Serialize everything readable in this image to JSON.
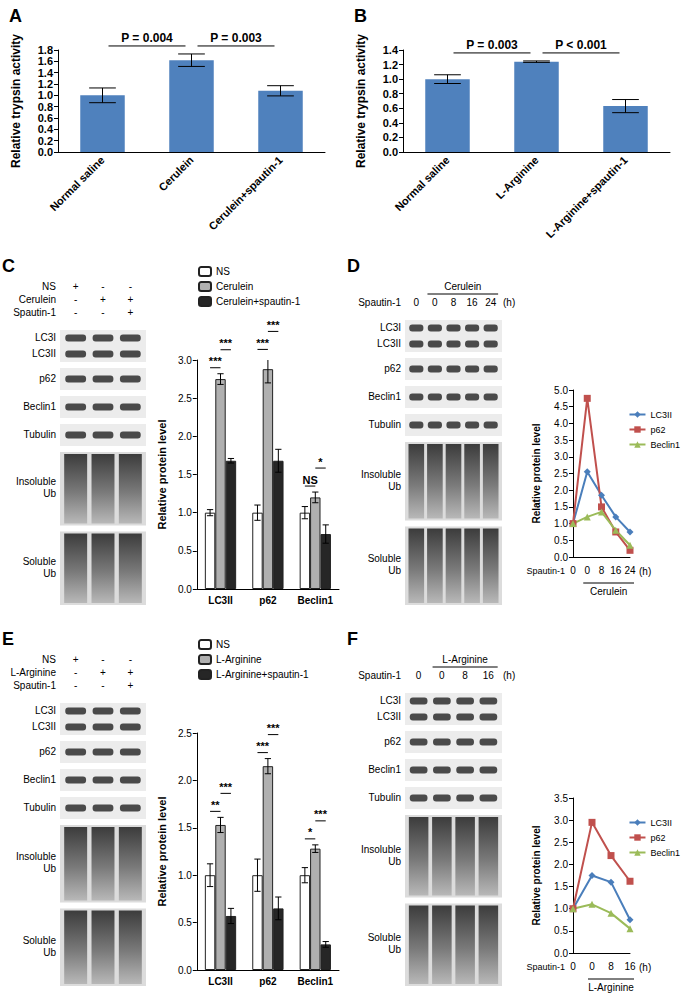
{
  "chart_data": [
    {
      "type": "bar",
      "title": "A",
      "categories": [
        "Normal saline",
        "Cerulein",
        "Cerulein+spautin-1"
      ],
      "values": [
        1.0,
        1.62,
        1.08
      ],
      "errors": [
        0.13,
        0.11,
        0.09
      ],
      "color": "#4f81bd",
      "ylabel": "Relative trypsin activity",
      "ylim": [
        0,
        1.8
      ],
      "yticks": [
        {
          "value": 0,
          "label": "0.0"
        },
        0.2,
        0.4,
        0.6,
        0.8,
        {
          "value": 1,
          "label": "1.0"
        },
        1.2,
        1.4,
        1.6,
        1.8
      ],
      "grid": false,
      "annotations": [
        {
          "between": [
            "Normal saline",
            "Cerulein"
          ],
          "text": "P = 0.004"
        },
        {
          "between": [
            "Cerulein",
            "Cerulein+spautin-1"
          ],
          "text": "P = 0.003"
        }
      ]
    },
    {
      "type": "bar",
      "title": "B",
      "categories": [
        "Normal saline",
        "L-Arginine",
        "L-Arginine+spautin-1"
      ],
      "values": [
        1.0,
        1.24,
        0.63
      ],
      "errors": [
        0.06,
        0.01,
        0.09
      ],
      "color": "#4f81bd",
      "ylabel": "Relative trypsin activity",
      "ylim": [
        0,
        1.4
      ],
      "yticks": [
        {
          "value": 0,
          "label": "0.0"
        },
        0.2,
        0.4,
        0.6,
        0.8,
        {
          "value": 1,
          "label": "1.0"
        },
        1.2,
        1.4
      ],
      "grid": false,
      "annotations": [
        {
          "between": [
            "Normal saline",
            "L-Arginine"
          ],
          "text": "P = 0.003"
        },
        {
          "between": [
            "L-Arginine",
            "L-Arginine+spautin-1"
          ],
          "text": "P < 0.001"
        }
      ]
    },
    {
      "type": "bar",
      "categories": [
        "LC3II",
        "p62",
        "Beclin1"
      ],
      "series": [
        {
          "name": "NS",
          "color": "#ffffff",
          "values": [
            1.0,
            1.0,
            1.0
          ],
          "errors": [
            0.04,
            0.1,
            0.08
          ]
        },
        {
          "name": "Cerulein",
          "color": "#b0b0b0",
          "values": [
            2.75,
            2.88,
            1.2
          ],
          "errors": [
            0.07,
            0.18,
            0.07
          ]
        },
        {
          "name": "Cerulein+spautin-1",
          "color": "#262626",
          "values": [
            1.68,
            1.68,
            0.72
          ],
          "errors": [
            0.03,
            0.15,
            0.12
          ]
        }
      ],
      "ylabel": "Relative protein level",
      "ylim": [
        0,
        3
      ],
      "yticks": [
        {
          "value": 0,
          "label": "0.0"
        },
        0.5,
        {
          "value": 1,
          "label": "1.0"
        },
        1.5,
        {
          "value": 2,
          "label": "2.0"
        },
        2.5,
        {
          "value": 3,
          "label": "3.0"
        }
      ],
      "grid": false,
      "legend": "top",
      "annotations": [
        {
          "category": "LC3II",
          "between": [
            "NS",
            "Cerulein"
          ],
          "text": "***"
        },
        {
          "category": "LC3II",
          "between": [
            "Cerulein",
            "Cerulein+spautin-1"
          ],
          "text": "***"
        },
        {
          "category": "p62",
          "between": [
            "NS",
            "Cerulein"
          ],
          "text": "***"
        },
        {
          "category": "p62",
          "between": [
            "Cerulein",
            "Cerulein+spautin-1"
          ],
          "text": "***"
        },
        {
          "category": "Beclin1",
          "between": [
            "NS",
            "Cerulein"
          ],
          "text": "NS"
        },
        {
          "category": "Beclin1",
          "between": [
            "Cerulein",
            "Cerulein+spautin-1"
          ],
          "text": "*"
        }
      ]
    },
    {
      "type": "line",
      "categories": [
        "0",
        "0",
        "8",
        "16",
        "24"
      ],
      "xlabel": "Spautin-1",
      "series": [
        {
          "name": "LC3II",
          "color": "#4a7ebb",
          "marker": "diamond",
          "values": [
            1.0,
            2.55,
            1.85,
            1.2,
            0.75
          ]
        },
        {
          "name": "p62",
          "color": "#c0504d",
          "marker": "square",
          "values": [
            1.0,
            4.75,
            1.5,
            0.75,
            0.2
          ]
        },
        {
          "name": "Beclin1",
          "color": "#9bbb59",
          "marker": "triangle",
          "values": [
            1.0,
            1.2,
            1.35,
            0.8,
            0.35
          ]
        }
      ],
      "ylabel": "Relative protein level",
      "ylim": [
        0,
        5
      ],
      "yticks": [
        {
          "value": 0,
          "label": "0.0"
        },
        0.5,
        {
          "value": 1,
          "label": "1.0"
        },
        1.5,
        {
          "value": 2,
          "label": "2.0"
        },
        2.5,
        {
          "value": 3,
          "label": "3.0"
        },
        3.5,
        {
          "value": 4,
          "label": "4.0"
        },
        4.5,
        {
          "value": 5,
          "label": "5.0"
        }
      ],
      "grid": false,
      "legend": "right",
      "annotations": [
        {
          "text": "(h)"
        },
        {
          "text": "Cerulein",
          "bracket": [
            1,
            4
          ]
        }
      ]
    },
    {
      "type": "bar",
      "categories": [
        "LC3II",
        "p62",
        "Beclin1"
      ],
      "series": [
        {
          "name": "NS",
          "color": "#ffffff",
          "values": [
            1.0,
            1.0,
            1.0
          ],
          "errors": [
            0.12,
            0.17,
            0.08
          ]
        },
        {
          "name": "L-Arginine",
          "color": "#b0b0b0",
          "values": [
            1.53,
            2.15,
            1.28
          ],
          "errors": [
            0.08,
            0.08,
            0.04
          ]
        },
        {
          "name": "L-Arginine+spautin-1",
          "color": "#262626",
          "values": [
            0.57,
            0.65,
            0.27
          ],
          "errors": [
            0.08,
            0.12,
            0.03
          ]
        }
      ],
      "ylabel": "Relative protein level",
      "ylim": [
        0,
        2.5
      ],
      "yticks": [
        {
          "value": 0,
          "label": "0.0"
        },
        0.5,
        {
          "value": 1,
          "label": "1.0"
        },
        1.5,
        {
          "value": 2,
          "label": "2.0"
        },
        2.5
      ],
      "grid": false,
      "legend": "top",
      "annotations": [
        {
          "category": "LC3II",
          "between": [
            "NS",
            "L-Arginine"
          ],
          "text": "**"
        },
        {
          "category": "LC3II",
          "between": [
            "L-Arginine",
            "L-Arginine+spautin-1"
          ],
          "text": "***"
        },
        {
          "category": "p62",
          "between": [
            "NS",
            "L-Arginine"
          ],
          "text": "***"
        },
        {
          "category": "p62",
          "between": [
            "L-Arginine",
            "L-Arginine+spautin-1"
          ],
          "text": "***"
        },
        {
          "category": "Beclin1",
          "between": [
            "NS",
            "L-Arginine"
          ],
          "text": "*"
        },
        {
          "category": "Beclin1",
          "between": [
            "L-Arginine",
            "L-Arginine+spautin-1"
          ],
          "text": "***"
        }
      ]
    },
    {
      "type": "line",
      "categories": [
        "0",
        "0",
        "8",
        "16"
      ],
      "xlabel": "Spautin-1",
      "series": [
        {
          "name": "LC3II",
          "color": "#4a7ebb",
          "marker": "diamond",
          "values": [
            1.0,
            1.75,
            1.6,
            0.75
          ]
        },
        {
          "name": "p62",
          "color": "#c0504d",
          "marker": "square",
          "values": [
            1.0,
            2.95,
            2.2,
            1.62
          ]
        },
        {
          "name": "Beclin1",
          "color": "#9bbb59",
          "marker": "triangle",
          "values": [
            1.0,
            1.1,
            0.9,
            0.55
          ]
        }
      ],
      "ylabel": "Relative protein level",
      "ylim": [
        0,
        3.5
      ],
      "yticks": [
        {
          "value": 0,
          "label": "0.0"
        },
        0.5,
        {
          "value": 1,
          "label": "1.0"
        },
        1.5,
        {
          "value": 2,
          "label": "2.0"
        },
        2.5,
        {
          "value": 3,
          "label": "3.0"
        },
        3.5
      ],
      "grid": false,
      "legend": "right",
      "annotations": [
        {
          "text": "(h)"
        },
        {
          "text": "L-Arginine",
          "bracket": [
            1,
            3
          ]
        }
      ]
    }
  ],
  "blots": [
    {
      "panel": "C",
      "conditions": [
        {
          "label": "NS",
          "marks": [
            "+",
            "-",
            "-"
          ]
        },
        {
          "label": "Cerulein",
          "marks": [
            "-",
            "+",
            "+"
          ]
        },
        {
          "label": "Spautin-1",
          "marks": [
            "-",
            "-",
            "+"
          ]
        }
      ],
      "bands": [
        [
          "LC3I",
          "LC3II"
        ],
        [
          "p62"
        ],
        [
          "Beclin1"
        ],
        [
          "Tubulin"
        ]
      ],
      "smears": [
        "Insoluble Ub",
        "Soluble Ub"
      ]
    },
    {
      "panel": "D",
      "treatment": {
        "label": "Cerulein",
        "from": 1,
        "to": 4
      },
      "time": {
        "label": "Spautin-1",
        "marks": [
          "0",
          "0",
          "8",
          "16",
          "24"
        ],
        "unit": "(h)"
      },
      "bands": [
        [
          "LC3I",
          "LC3II"
        ],
        [
          "p62"
        ],
        [
          "Beclin1"
        ],
        [
          "Tubulin"
        ]
      ],
      "smears": [
        "Insoluble Ub",
        "Soluble Ub"
      ]
    },
    {
      "panel": "E",
      "conditions": [
        {
          "label": "NS",
          "marks": [
            "+",
            "-",
            "-"
          ]
        },
        {
          "label": "L-Arginine",
          "marks": [
            "-",
            "+",
            "+"
          ]
        },
        {
          "label": "Spautin-1",
          "marks": [
            "-",
            "-",
            "+"
          ]
        }
      ],
      "bands": [
        [
          "LC3I",
          "LC3II"
        ],
        [
          "p62"
        ],
        [
          "Beclin1"
        ],
        [
          "Tubulin"
        ]
      ],
      "smears": [
        "Insoluble Ub",
        "Soluble Ub"
      ]
    },
    {
      "panel": "F",
      "treatment": {
        "label": "L-Arginine",
        "from": 1,
        "to": 3
      },
      "time": {
        "label": "Spautin-1",
        "marks": [
          "0",
          "0",
          "8",
          "16"
        ],
        "unit": "(h)"
      },
      "bands": [
        [
          "LC3I",
          "LC3II"
        ],
        [
          "p62"
        ],
        [
          "Beclin1"
        ],
        [
          "Tubulin"
        ]
      ],
      "smears": [
        "Insoluble Ub",
        "Soluble Ub"
      ]
    }
  ]
}
